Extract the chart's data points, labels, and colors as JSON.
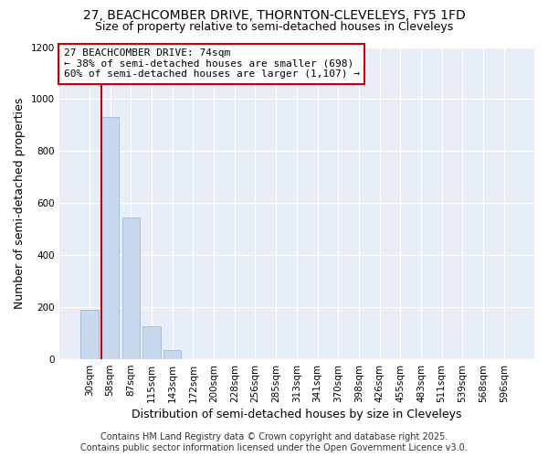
{
  "title": "27, BEACHCOMBER DRIVE, THORNTON-CLEVELEYS, FY5 1FD",
  "subtitle": "Size of property relative to semi-detached houses in Cleveleys",
  "xlabel": "Distribution of semi-detached houses by size in Cleveleys",
  "ylabel": "Number of semi-detached properties",
  "bar_color": "#c8d8ee",
  "bar_edge_color": "#a8bcd8",
  "bins": [
    "30sqm",
    "58sqm",
    "87sqm",
    "115sqm",
    "143sqm",
    "172sqm",
    "200sqm",
    "228sqm",
    "256sqm",
    "285sqm",
    "313sqm",
    "341sqm",
    "370sqm",
    "398sqm",
    "426sqm",
    "455sqm",
    "483sqm",
    "511sqm",
    "539sqm",
    "568sqm",
    "596sqm"
  ],
  "values": [
    190,
    930,
    545,
    125,
    35,
    2,
    0,
    0,
    0,
    0,
    0,
    0,
    0,
    0,
    0,
    0,
    0,
    0,
    0,
    0,
    2
  ],
  "ylim": [
    0,
    1200
  ],
  "yticks": [
    0,
    200,
    400,
    600,
    800,
    1000,
    1200
  ],
  "property_line_color": "#cc0000",
  "annotation_title": "27 BEACHCOMBER DRIVE: 74sqm",
  "annotation_line1": "← 38% of semi-detached houses are smaller (698)",
  "annotation_line2": "60% of semi-detached houses are larger (1,107) →",
  "annotation_box_color": "#ffffff",
  "annotation_box_edge_color": "#cc0000",
  "footer_line1": "Contains HM Land Registry data © Crown copyright and database right 2025.",
  "footer_line2": "Contains public sector information licensed under the Open Government Licence v3.0.",
  "fig_bg_color": "#ffffff",
  "plot_bg_color": "#e8eef8",
  "grid_color": "#ffffff",
  "title_fontsize": 10,
  "subtitle_fontsize": 9,
  "axis_label_fontsize": 9,
  "tick_fontsize": 7.5,
  "annotation_fontsize": 8,
  "footer_fontsize": 7
}
